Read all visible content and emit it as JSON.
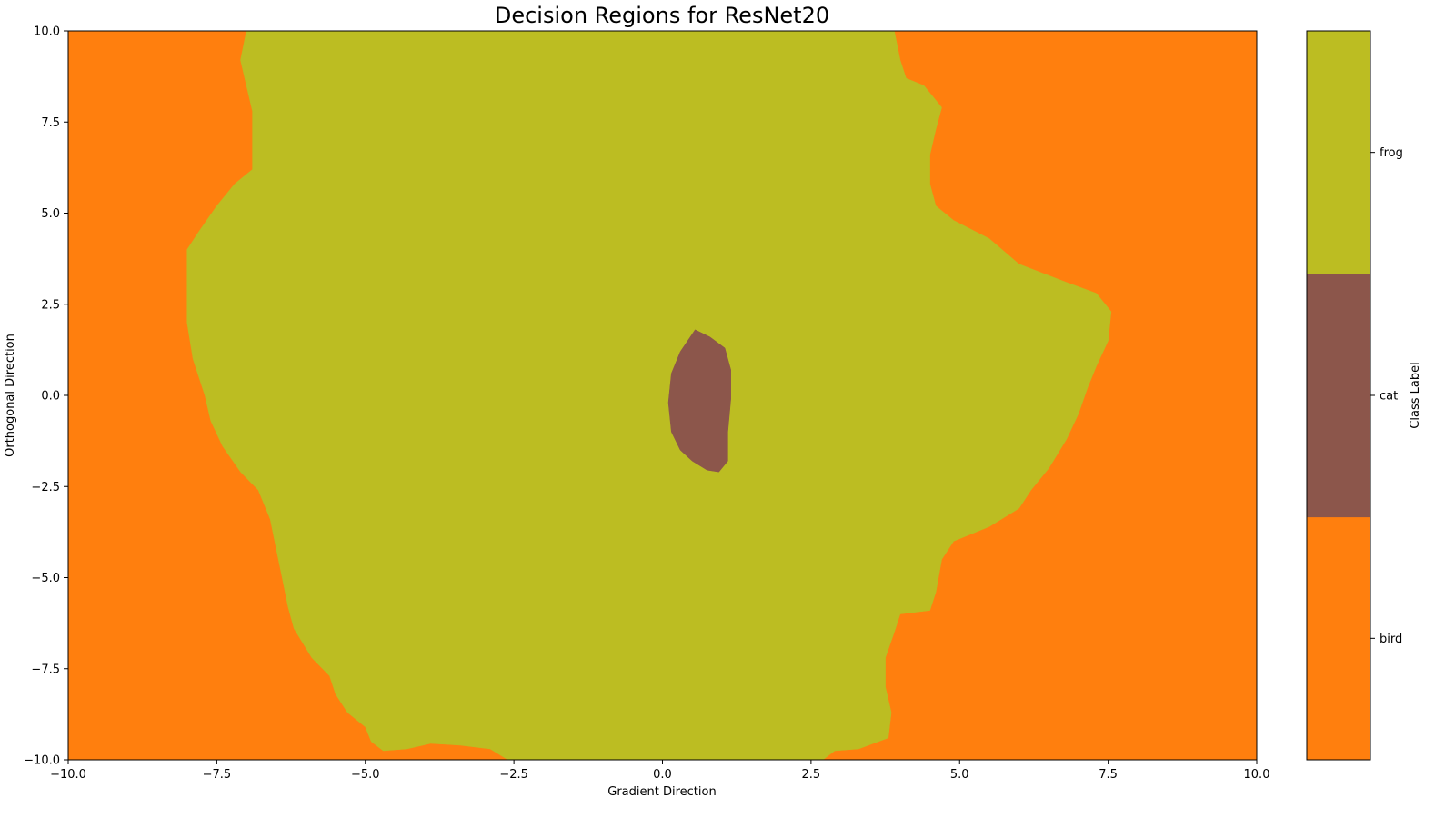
{
  "chart_data": {
    "type": "heatmap",
    "title": "Decision Regions for ResNet20",
    "xlabel": "Gradient Direction",
    "ylabel": "Orthogonal Direction",
    "xlim": [
      -10,
      10
    ],
    "ylim": [
      -10,
      10
    ],
    "x_ticks": [
      -10.0,
      -7.5,
      -5.0,
      -2.5,
      0.0,
      2.5,
      5.0,
      7.5,
      10.0
    ],
    "y_ticks": [
      -10.0,
      -7.5,
      -5.0,
      -2.5,
      0.0,
      2.5,
      5.0,
      7.5,
      10.0
    ],
    "x_tick_labels": [
      "−10.0",
      "−7.5",
      "−5.0",
      "−2.5",
      "0.0",
      "2.5",
      "5.0",
      "7.5",
      "10.0"
    ],
    "y_tick_labels": [
      "−10.0",
      "−7.5",
      "−5.0",
      "−2.5",
      "0.0",
      "2.5",
      "5.0",
      "7.5",
      "10.0"
    ],
    "grid": false,
    "background_class": "bird",
    "classes": [
      {
        "name": "bird",
        "color": "#ff7f0e"
      },
      {
        "name": "cat",
        "color": "#8c564b"
      },
      {
        "name": "frog",
        "color": "#bcbd22"
      }
    ],
    "colorbar": {
      "label": "Class Label",
      "order_bottom_to_top": [
        "bird",
        "cat",
        "frog"
      ]
    },
    "regions": [
      {
        "class": "frog",
        "boundary": [
          [
            -7.0,
            10.0
          ],
          [
            -7.1,
            9.2
          ],
          [
            -7.0,
            8.5
          ],
          [
            -6.9,
            7.8
          ],
          [
            -6.9,
            7.0
          ],
          [
            -6.9,
            6.2
          ],
          [
            -7.2,
            5.8
          ],
          [
            -7.5,
            5.2
          ],
          [
            -7.8,
            4.5
          ],
          [
            -8.0,
            4.0
          ],
          [
            -8.0,
            3.0
          ],
          [
            -8.0,
            2.0
          ],
          [
            -7.9,
            1.0
          ],
          [
            -7.7,
            0.0
          ],
          [
            -7.6,
            -0.7
          ],
          [
            -7.4,
            -1.4
          ],
          [
            -7.1,
            -2.1
          ],
          [
            -6.8,
            -2.6
          ],
          [
            -6.6,
            -3.4
          ],
          [
            -6.5,
            -4.2
          ],
          [
            -6.4,
            -5.0
          ],
          [
            -6.3,
            -5.8
          ],
          [
            -6.2,
            -6.4
          ],
          [
            -5.9,
            -7.2
          ],
          [
            -5.6,
            -7.7
          ],
          [
            -5.5,
            -8.2
          ],
          [
            -5.3,
            -8.7
          ],
          [
            -5.0,
            -9.1
          ],
          [
            -4.9,
            -9.5
          ],
          [
            -4.7,
            -9.75
          ],
          [
            -4.3,
            -9.7
          ],
          [
            -3.9,
            -9.55
          ],
          [
            -3.4,
            -9.6
          ],
          [
            -2.9,
            -9.7
          ],
          [
            -2.6,
            -10.0
          ],
          [
            1.2,
            -10.0
          ],
          [
            2.7,
            -10.0
          ],
          [
            2.9,
            -9.75
          ],
          [
            3.3,
            -9.7
          ],
          [
            3.8,
            -9.4
          ],
          [
            3.85,
            -8.7
          ],
          [
            3.75,
            -8.0
          ],
          [
            3.75,
            -7.2
          ],
          [
            3.9,
            -6.5
          ],
          [
            4.0,
            -6.0
          ],
          [
            4.5,
            -5.9
          ],
          [
            4.6,
            -5.4
          ],
          [
            4.7,
            -4.5
          ],
          [
            4.9,
            -4.0
          ],
          [
            5.5,
            -3.6
          ],
          [
            6.0,
            -3.1
          ],
          [
            6.2,
            -2.6
          ],
          [
            6.5,
            -2.0
          ],
          [
            6.8,
            -1.2
          ],
          [
            7.0,
            -0.5
          ],
          [
            7.15,
            0.2
          ],
          [
            7.3,
            0.8
          ],
          [
            7.5,
            1.5
          ],
          [
            7.55,
            2.3
          ],
          [
            7.3,
            2.8
          ],
          [
            6.8,
            3.1
          ],
          [
            6.0,
            3.6
          ],
          [
            5.5,
            4.3
          ],
          [
            4.9,
            4.8
          ],
          [
            4.6,
            5.2
          ],
          [
            4.5,
            5.8
          ],
          [
            4.5,
            6.6
          ],
          [
            4.6,
            7.3
          ],
          [
            4.7,
            7.9
          ],
          [
            4.4,
            8.5
          ],
          [
            4.1,
            8.7
          ],
          [
            4.0,
            9.2
          ],
          [
            3.9,
            10.0
          ]
        ]
      },
      {
        "class": "cat",
        "boundary": [
          [
            0.55,
            1.8
          ],
          [
            0.8,
            1.6
          ],
          [
            1.05,
            1.3
          ],
          [
            1.15,
            0.7
          ],
          [
            1.15,
            -0.1
          ],
          [
            1.1,
            -1.0
          ],
          [
            1.1,
            -1.8
          ],
          [
            0.95,
            -2.1
          ],
          [
            0.75,
            -2.05
          ],
          [
            0.5,
            -1.8
          ],
          [
            0.3,
            -1.5
          ],
          [
            0.15,
            -1.0
          ],
          [
            0.1,
            -0.2
          ],
          [
            0.15,
            0.6
          ],
          [
            0.3,
            1.2
          ]
        ]
      }
    ]
  }
}
